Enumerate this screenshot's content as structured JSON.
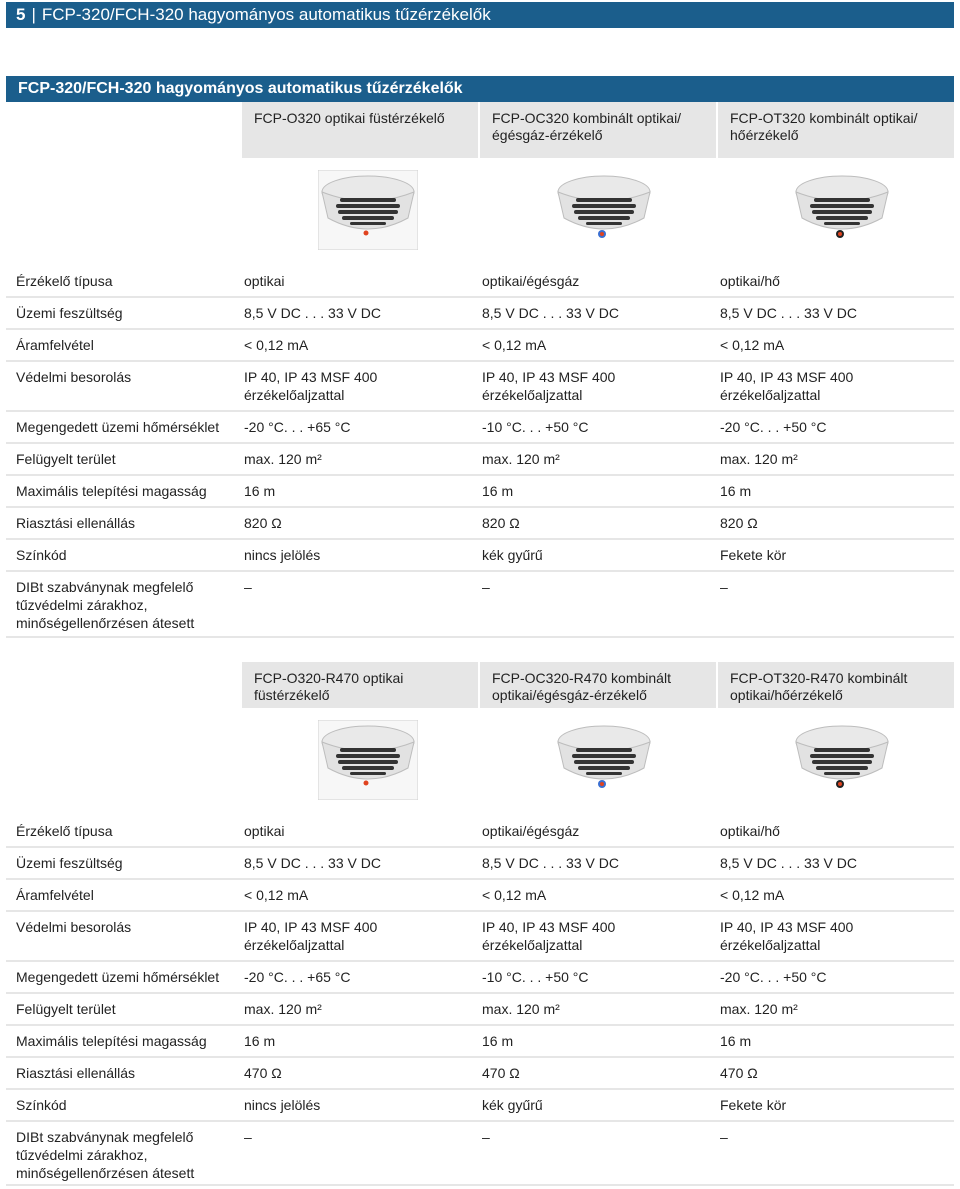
{
  "page": {
    "number": "5",
    "title": "FCP-320/FCH-320 hagyományos automatikus tűzérzékelők"
  },
  "section_title": "FCP-320/FCH-320 hagyományos automatikus tűzérzékelők",
  "table1": {
    "headers": [
      "FCP-O320 optikai füstérzékelő",
      "FCP-OC320 kombinált optikai/ égésgáz-érzékelő",
      "FCP-OT320 kombinált optikai/ hőérzékelő"
    ],
    "detector_icons": [
      "smoke-detector-icon",
      "combined-detector-blue-icon",
      "combined-detector-heat-icon"
    ],
    "rows": [
      {
        "label": "Érzékelő típusa",
        "values": [
          "optikai",
          "optikai/égésgáz",
          "optikai/hő"
        ]
      },
      {
        "label": "Üzemi feszültség",
        "values": [
          "8,5 V DC . . . 33 V DC",
          "8,5 V DC . . . 33 V DC",
          "8,5 V DC . . . 33 V DC"
        ]
      },
      {
        "label": "Áramfelvétel",
        "values": [
          "< 0,12 mA",
          "< 0,12 mA",
          "< 0,12 mA"
        ]
      },
      {
        "label": "Védelmi besorolás",
        "values": [
          "IP 40, IP 43 MSF 400 érzékelőaljzattal",
          "IP 40, IP 43 MSF 400 érzékelőaljzattal",
          "IP 40, IP 43 MSF 400 érzékelőaljzattal"
        ]
      },
      {
        "label": "Megengedett üzemi hőmérséklet",
        "values": [
          "-20 °C. . . +65 °C",
          "-10 °C. . . +50 °C",
          "-20 °C. . . +50 °C"
        ]
      },
      {
        "label": "Felügyelt terület",
        "values": [
          "max. 120 m²",
          "max. 120 m²",
          "max. 120 m²"
        ]
      },
      {
        "label": "Maximális telepítési magasság",
        "values": [
          "16 m",
          "16 m",
          "16 m"
        ]
      },
      {
        "label": "Riasztási ellenállás",
        "values": [
          "820 Ω",
          "820 Ω",
          "820 Ω"
        ]
      },
      {
        "label": "Színkód",
        "values": [
          "nincs jelölés",
          "kék gyűrű",
          "Fekete kör"
        ]
      },
      {
        "label": "DIBt szabványnak megfelelő tűzvédelmi zárakhoz, minőségellenőrzésen átesett",
        "values": [
          "–",
          "–",
          "–"
        ]
      }
    ]
  },
  "table2": {
    "headers": [
      "FCP-O320-R470 optikai füstérzékelő",
      "FCP-OC320-R470 kombinált optikai/égésgáz-érzékelő",
      "FCP-OT320-R470 kombinált optikai/hőérzékelő"
    ],
    "detector_icons": [
      "smoke-detector-icon",
      "combined-detector-blue-icon",
      "combined-detector-heat-icon"
    ],
    "rows": [
      {
        "label": "Érzékelő típusa",
        "values": [
          "optikai",
          "optikai/égésgáz",
          "optikai/hő"
        ]
      },
      {
        "label": "Üzemi feszültség",
        "values": [
          "8,5 V DC . . . 33 V DC",
          "8,5 V DC . . . 33 V DC",
          "8,5 V DC . . . 33 V DC"
        ]
      },
      {
        "label": "Áramfelvétel",
        "values": [
          "< 0,12 mA",
          "< 0,12 mA",
          "< 0,12 mA"
        ]
      },
      {
        "label": "Védelmi besorolás",
        "values": [
          "IP 40, IP 43 MSF 400 érzékelőaljzattal",
          "IP 40, IP 43 MSF 400 érzékelőaljzattal",
          "IP 40, IP 43 MSF 400 érzékelőaljzattal"
        ]
      },
      {
        "label": "Megengedett üzemi hőmérséklet",
        "values": [
          "-20 °C. . . +65 °C",
          "-10 °C. . . +50 °C",
          "-20 °C. . . +50 °C"
        ]
      },
      {
        "label": "Felügyelt terület",
        "values": [
          "max. 120 m²",
          "max. 120 m²",
          "max. 120 m²"
        ]
      },
      {
        "label": "Maximális telepítési magasság",
        "values": [
          "16 m",
          "16 m",
          "16 m"
        ]
      },
      {
        "label": "Riasztási ellenállás",
        "values": [
          "470 Ω",
          "470 Ω",
          "470 Ω"
        ]
      },
      {
        "label": "Színkód",
        "values": [
          "nincs jelölés",
          "kék gyűrű",
          "Fekete kör"
        ]
      },
      {
        "label": "DIBt szabványnak megfelelő tűzvédelmi zárakhoz, minőségellenőrzésen átesett",
        "values": [
          "–",
          "–",
          "–"
        ]
      }
    ]
  },
  "colors": {
    "header_blue": "#1b5e8c",
    "header_gray": "#e6e6e6",
    "led_red": "#e0431f",
    "led_blue": "#3b6fd1"
  }
}
